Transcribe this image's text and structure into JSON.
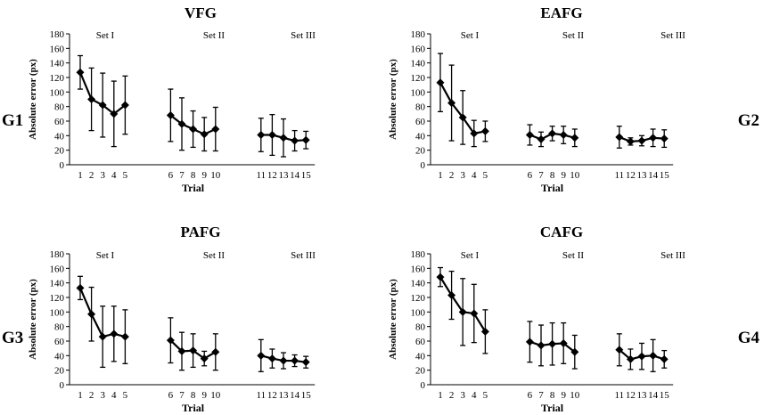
{
  "chart_data": [
    {
      "type": "line",
      "title": "VFG",
      "group_label": "G1",
      "xlabel": "Trial",
      "ylabel": "Absolute error (px)",
      "ylim": [
        0,
        180
      ],
      "y_ticks": [
        0,
        20,
        40,
        60,
        80,
        100,
        120,
        140,
        160,
        180
      ],
      "set_labels": [
        "Set I",
        "Set II",
        "Set III"
      ],
      "segments": [
        {
          "x": [
            1,
            2,
            3,
            4,
            5
          ],
          "values": [
            127,
            90,
            82,
            70,
            82
          ],
          "errors": [
            23,
            43,
            44,
            45,
            40
          ]
        },
        {
          "x": [
            6,
            7,
            8,
            9,
            10
          ],
          "values": [
            68,
            56,
            49,
            42,
            49
          ],
          "errors": [
            36,
            36,
            25,
            23,
            30
          ]
        },
        {
          "x": [
            11,
            12,
            13,
            14,
            15
          ],
          "values": [
            41,
            41,
            37,
            33,
            34
          ],
          "errors": [
            23,
            28,
            26,
            14,
            12
          ]
        }
      ]
    },
    {
      "type": "line",
      "title": "EAFG",
      "group_label": "G2",
      "xlabel": "Trial",
      "ylabel": "Absolute error (px)",
      "ylim": [
        0,
        180
      ],
      "y_ticks": [
        0,
        20,
        40,
        60,
        80,
        100,
        120,
        140,
        160,
        180
      ],
      "set_labels": [
        "Set I",
        "Set II",
        "Set III"
      ],
      "segments": [
        {
          "x": [
            1,
            2,
            3,
            4,
            5
          ],
          "values": [
            113,
            85,
            65,
            43,
            46
          ],
          "errors": [
            40,
            52,
            37,
            18,
            14
          ]
        },
        {
          "x": [
            6,
            7,
            8,
            9,
            10
          ],
          "values": [
            41,
            35,
            43,
            41,
            37
          ],
          "errors": [
            14,
            10,
            10,
            12,
            12
          ]
        },
        {
          "x": [
            11,
            12,
            13,
            14,
            15
          ],
          "values": [
            38,
            32,
            33,
            37,
            36
          ],
          "errors": [
            15,
            5,
            7,
            12,
            12
          ]
        }
      ]
    },
    {
      "type": "line",
      "title": "PAFG",
      "group_label": "G3",
      "xlabel": "Trial",
      "ylabel": "Absolute error (px)",
      "ylim": [
        0,
        180
      ],
      "y_ticks": [
        0,
        20,
        40,
        60,
        80,
        100,
        120,
        140,
        160,
        180
      ],
      "set_labels": [
        "Set I",
        "Set II",
        "Set III"
      ],
      "segments": [
        {
          "x": [
            1,
            2,
            3,
            4,
            5
          ],
          "values": [
            133,
            97,
            66,
            70,
            66
          ],
          "errors": [
            16,
            37,
            42,
            38,
            37
          ]
        },
        {
          "x": [
            6,
            7,
            8,
            9,
            10
          ],
          "values": [
            61,
            46,
            47,
            36,
            45
          ],
          "errors": [
            31,
            26,
            23,
            10,
            25
          ]
        },
        {
          "x": [
            11,
            12,
            13,
            14,
            15
          ],
          "values": [
            40,
            36,
            33,
            33,
            31
          ],
          "errors": [
            22,
            13,
            11,
            8,
            8
          ]
        }
      ]
    },
    {
      "type": "line",
      "title": "CAFG",
      "group_label": "G4",
      "xlabel": "Trial",
      "ylabel": "Absolute error (px)",
      "ylim": [
        0,
        180
      ],
      "y_ticks": [
        0,
        20,
        40,
        60,
        80,
        100,
        120,
        140,
        160,
        180
      ],
      "set_labels": [
        "Set I",
        "Set II",
        "Set III"
      ],
      "segments": [
        {
          "x": [
            1,
            2,
            3,
            4,
            5
          ],
          "values": [
            148,
            123,
            100,
            98,
            73
          ],
          "errors": [
            13,
            33,
            46,
            40,
            30
          ]
        },
        {
          "x": [
            6,
            7,
            8,
            9,
            10
          ],
          "values": [
            59,
            54,
            56,
            57,
            45
          ],
          "errors": [
            28,
            28,
            29,
            28,
            23
          ]
        },
        {
          "x": [
            11,
            12,
            13,
            14,
            15
          ],
          "values": [
            48,
            35,
            39,
            40,
            35
          ],
          "errors": [
            22,
            14,
            18,
            22,
            12
          ]
        }
      ]
    }
  ]
}
